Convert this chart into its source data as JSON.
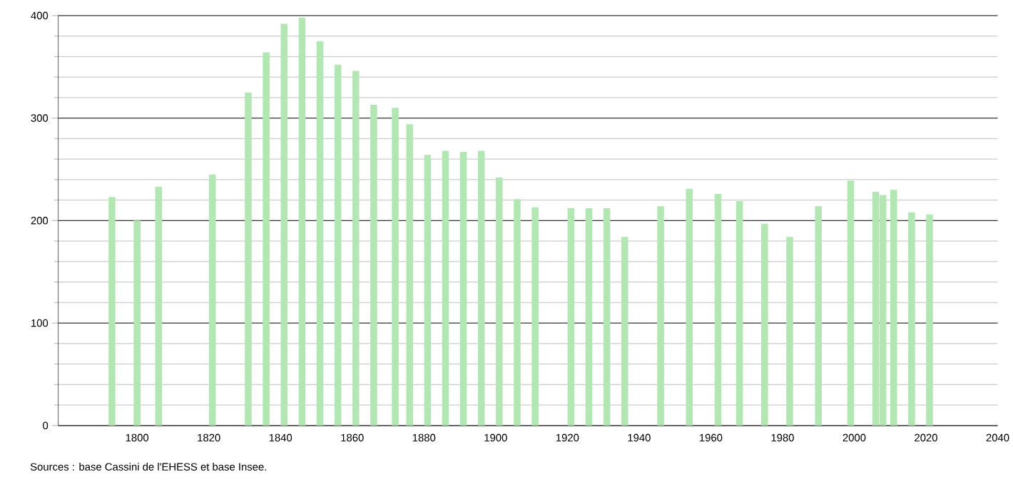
{
  "chart_data": {
    "type": "bar",
    "x": [
      1793,
      1800,
      1806,
      1821,
      1831,
      1836,
      1841,
      1846,
      1851,
      1856,
      1861,
      1866,
      1872,
      1876,
      1881,
      1886,
      1891,
      1896,
      1901,
      1906,
      1911,
      1921,
      1926,
      1931,
      1936,
      1946,
      1954,
      1962,
      1968,
      1975,
      1982,
      1990,
      1999,
      2006,
      2008,
      2011,
      2016,
      2021
    ],
    "values": [
      223,
      200,
      233,
      245,
      325,
      364,
      392,
      398,
      375,
      352,
      346,
      313,
      310,
      294,
      264,
      268,
      267,
      268,
      242,
      221,
      213,
      212,
      212,
      212,
      184,
      214,
      231,
      226,
      219,
      197,
      184,
      214,
      239,
      228,
      225,
      230,
      208,
      206
    ],
    "color": "#b2e6b2",
    "xlim": [
      1778,
      2040
    ],
    "xticks": [
      1800,
      1820,
      1840,
      1860,
      1880,
      1900,
      1920,
      1940,
      1960,
      1980,
      2000,
      2020,
      2040
    ],
    "ylim": [
      0,
      400
    ],
    "yticks": [
      0,
      100,
      200,
      300,
      400
    ],
    "grid": "y",
    "annotations": [
      "Sources : base Cassini de l'EHESS et base Insee."
    ]
  }
}
